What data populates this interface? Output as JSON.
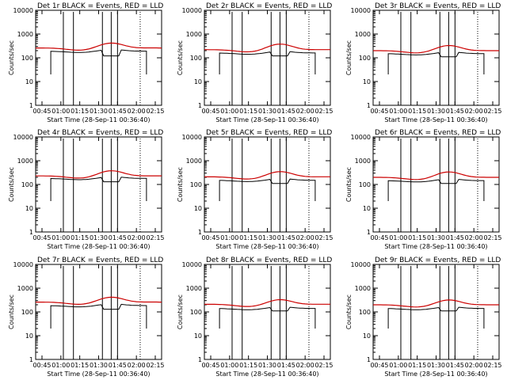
{
  "chart_data": [
    {
      "type": "line",
      "title": "Det 1r BLACK = Events, RED = LLD",
      "xlabel": "Start Time (28-Sep-11 00:36:40)",
      "ylabel": "Counts/sec",
      "yscale": "log",
      "ylim": [
        1,
        10000
      ],
      "xticks": [
        "00:45",
        "01:00",
        "01:15",
        "01:30",
        "01:45",
        "02:00",
        "02:15"
      ],
      "yticks": [
        "1",
        "10",
        "100",
        "1000",
        "10000"
      ],
      "series": [
        {
          "name": "Events",
          "color": "#000000",
          "base": 190,
          "dip": 120,
          "dip_x": [
            88,
            102
          ]
        },
        {
          "name": "LLD",
          "color": "#cc0000",
          "base": 260,
          "peak": 420
        }
      ]
    },
    {
      "type": "line",
      "title": "Det 2r BLACK = Events, RED = LLD",
      "xlabel": "Start Time (28-Sep-11 00:36:40)",
      "ylabel": "Counts/sec",
      "yscale": "log",
      "ylim": [
        1,
        10000
      ],
      "xticks": [
        "00:45",
        "01:00",
        "01:15",
        "01:30",
        "01:45",
        "02:00",
        "02:15"
      ],
      "yticks": [
        "1",
        "10",
        "100",
        "1000",
        "10000"
      ],
      "series": [
        {
          "name": "Events",
          "color": "#000000",
          "base": 160,
          "dip": 120,
          "dip_x": [
            88,
            102
          ]
        },
        {
          "name": "LLD",
          "color": "#cc0000",
          "base": 220,
          "peak": 380
        }
      ]
    },
    {
      "type": "line",
      "title": "Det 3r BLACK = Events, RED = LLD",
      "xlabel": "Start Time (28-Sep-11 00:36:40)",
      "ylabel": "Counts/sec",
      "yscale": "log",
      "ylim": [
        1,
        10000
      ],
      "xticks": [
        "00:45",
        "01:00",
        "01:15",
        "01:30",
        "01:45",
        "02:00",
        "02:15"
      ],
      "yticks": [
        "1",
        "10",
        "100",
        "1000",
        "10000"
      ],
      "series": [
        {
          "name": "Events",
          "color": "#000000",
          "base": 150,
          "dip": 110,
          "dip_x": [
            88,
            102
          ]
        },
        {
          "name": "LLD",
          "color": "#cc0000",
          "base": 200,
          "peak": 330
        }
      ]
    },
    {
      "type": "line",
      "title": "Det 4r BLACK = Events, RED = LLD",
      "xlabel": "Start Time (28-Sep-11 00:36:40)",
      "ylabel": "Counts/sec",
      "yscale": "log",
      "ylim": [
        1,
        10000
      ],
      "xticks": [
        "00:45",
        "01:00",
        "01:15",
        "01:30",
        "01:45",
        "02:00",
        "02:15"
      ],
      "yticks": [
        "1",
        "10",
        "100",
        "1000",
        "10000"
      ],
      "series": [
        {
          "name": "Events",
          "color": "#000000",
          "base": 180,
          "dip": 130,
          "dip_x": [
            88,
            102
          ]
        },
        {
          "name": "LLD",
          "color": "#cc0000",
          "base": 230,
          "peak": 380
        }
      ]
    },
    {
      "type": "line",
      "title": "Det 5r BLACK = Events, RED = LLD",
      "xlabel": "Start Time (28-Sep-11 00:36:40)",
      "ylabel": "Counts/sec",
      "yscale": "log",
      "ylim": [
        1,
        10000
      ],
      "xticks": [
        "00:45",
        "01:00",
        "01:15",
        "01:30",
        "01:45",
        "02:00",
        "02:15"
      ],
      "yticks": [
        "1",
        "10",
        "100",
        "1000",
        "10000"
      ],
      "series": [
        {
          "name": "Events",
          "color": "#000000",
          "base": 150,
          "dip": 110,
          "dip_x": [
            88,
            102
          ]
        },
        {
          "name": "LLD",
          "color": "#cc0000",
          "base": 210,
          "peak": 350
        }
      ]
    },
    {
      "type": "line",
      "title": "Det 6r BLACK = Events, RED = LLD",
      "xlabel": "Start Time (28-Sep-11 00:36:40)",
      "ylabel": "Counts/sec",
      "yscale": "log",
      "ylim": [
        1,
        10000
      ],
      "xticks": [
        "00:45",
        "01:00",
        "01:15",
        "01:30",
        "01:45",
        "02:00",
        "02:15"
      ],
      "yticks": [
        "1",
        "10",
        "100",
        "1000",
        "10000"
      ],
      "series": [
        {
          "name": "Events",
          "color": "#000000",
          "base": 145,
          "dip": 110,
          "dip_x": [
            88,
            102
          ]
        },
        {
          "name": "LLD",
          "color": "#cc0000",
          "base": 200,
          "peak": 340
        }
      ]
    },
    {
      "type": "line",
      "title": "Det 7r BLACK = Events, RED = LLD",
      "xlabel": "Start Time (28-Sep-11 00:36:40)",
      "ylabel": "Counts/sec",
      "yscale": "log",
      "ylim": [
        1,
        10000
      ],
      "xticks": [
        "00:45",
        "01:00",
        "01:15",
        "01:30",
        "01:45",
        "02:00",
        "02:15"
      ],
      "yticks": [
        "1",
        "10",
        "100",
        "1000",
        "10000"
      ],
      "series": [
        {
          "name": "Events",
          "color": "#000000",
          "base": 185,
          "dip": 130,
          "dip_x": [
            88,
            102
          ]
        },
        {
          "name": "LLD",
          "color": "#cc0000",
          "base": 260,
          "peak": 420
        }
      ]
    },
    {
      "type": "line",
      "title": "Det 8r BLACK = Events, RED = LLD",
      "xlabel": "Start Time (28-Sep-11 00:36:40)",
      "ylabel": "Counts/sec",
      "yscale": "log",
      "ylim": [
        1,
        10000
      ],
      "xticks": [
        "00:45",
        "01:00",
        "01:15",
        "01:30",
        "01:45",
        "02:00",
        "02:15"
      ],
      "yticks": [
        "1",
        "10",
        "100",
        "1000",
        "10000"
      ],
      "series": [
        {
          "name": "Events",
          "color": "#000000",
          "base": 140,
          "dip": 110,
          "dip_x": [
            88,
            102
          ]
        },
        {
          "name": "LLD",
          "color": "#cc0000",
          "base": 210,
          "peak": 330
        }
      ]
    },
    {
      "type": "line",
      "title": "Det 9r BLACK = Events, RED = LLD",
      "xlabel": "Start Time (28-Sep-11 00:36:40)",
      "ylabel": "Counts/sec",
      "yscale": "log",
      "ylim": [
        1,
        10000
      ],
      "xticks": [
        "00:45",
        "01:00",
        "01:15",
        "01:30",
        "01:45",
        "02:00",
        "02:15"
      ],
      "yticks": [
        "1",
        "10",
        "100",
        "1000",
        "10000"
      ],
      "series": [
        {
          "name": "Events",
          "color": "#000000",
          "base": 140,
          "dip": 110,
          "dip_x": [
            88,
            102
          ]
        },
        {
          "name": "LLD",
          "color": "#cc0000",
          "base": 200,
          "peak": 320
        }
      ]
    }
  ]
}
